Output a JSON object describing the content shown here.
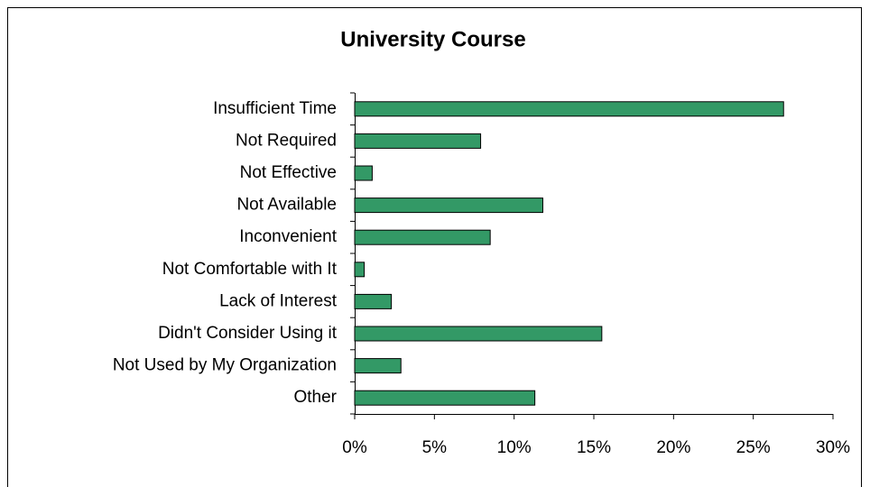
{
  "chart_data": {
    "type": "bar",
    "orientation": "horizontal",
    "title": "University Course",
    "categories": [
      "Insufficient Time",
      "Not Required",
      "Not Effective",
      "Not Available",
      "Inconvenient",
      "Not Comfortable with It",
      "Lack of Interest",
      "Didn't Consider Using it",
      "Not Used by My Organization",
      "Other"
    ],
    "values": [
      26.9,
      7.9,
      1.1,
      11.8,
      8.5,
      0.6,
      2.3,
      15.5,
      2.9,
      11.3
    ],
    "color": "#339966",
    "xlim": [
      0,
      30
    ],
    "xticks": [
      {
        "value": 0,
        "label": "0%"
      },
      {
        "value": 5,
        "label": "5%"
      },
      {
        "value": 10,
        "label": "10%"
      },
      {
        "value": 15,
        "label": "15%"
      },
      {
        "value": 20,
        "label": "20%"
      },
      {
        "value": 25,
        "label": "25%"
      },
      {
        "value": 30,
        "label": "30%"
      }
    ],
    "grid": false
  }
}
